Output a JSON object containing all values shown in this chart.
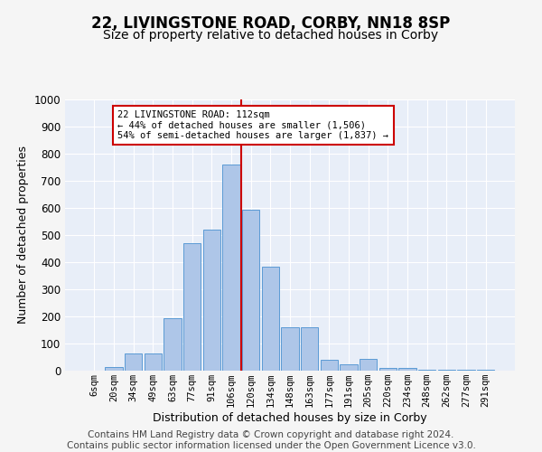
{
  "title": "22, LIVINGSTONE ROAD, CORBY, NN18 8SP",
  "subtitle": "Size of property relative to detached houses in Corby",
  "xlabel": "Distribution of detached houses by size in Corby",
  "ylabel": "Number of detached properties",
  "categories": [
    "6sqm",
    "20sqm",
    "34sqm",
    "49sqm",
    "63sqm",
    "77sqm",
    "91sqm",
    "106sqm",
    "120sqm",
    "134sqm",
    "148sqm",
    "163sqm",
    "177sqm",
    "191sqm",
    "205sqm",
    "220sqm",
    "234sqm",
    "248sqm",
    "262sqm",
    "277sqm",
    "291sqm"
  ],
  "values": [
    0,
    13,
    65,
    65,
    195,
    470,
    520,
    760,
    595,
    385,
    160,
    160,
    40,
    25,
    45,
    10,
    10,
    5,
    5,
    5,
    5
  ],
  "bar_color": "#aec6e8",
  "bar_edge_color": "#5b9bd5",
  "vline_color": "#cc0000",
  "annotation_text": "22 LIVINGSTONE ROAD: 112sqm\n← 44% of detached houses are smaller (1,506)\n54% of semi-detached houses are larger (1,837) →",
  "annotation_box_color": "#ffffff",
  "annotation_box_edge": "#cc0000",
  "ylim": [
    0,
    1000
  ],
  "yticks": [
    0,
    100,
    200,
    300,
    400,
    500,
    600,
    700,
    800,
    900,
    1000
  ],
  "background_color": "#e8eef8",
  "grid_color": "#ffffff",
  "fig_background": "#f5f5f5",
  "footer_line1": "Contains HM Land Registry data © Crown copyright and database right 2024.",
  "footer_line2": "Contains public sector information licensed under the Open Government Licence v3.0.",
  "title_fontsize": 12,
  "subtitle_fontsize": 10,
  "xlabel_fontsize": 9,
  "ylabel_fontsize": 9,
  "footer_fontsize": 7.5
}
